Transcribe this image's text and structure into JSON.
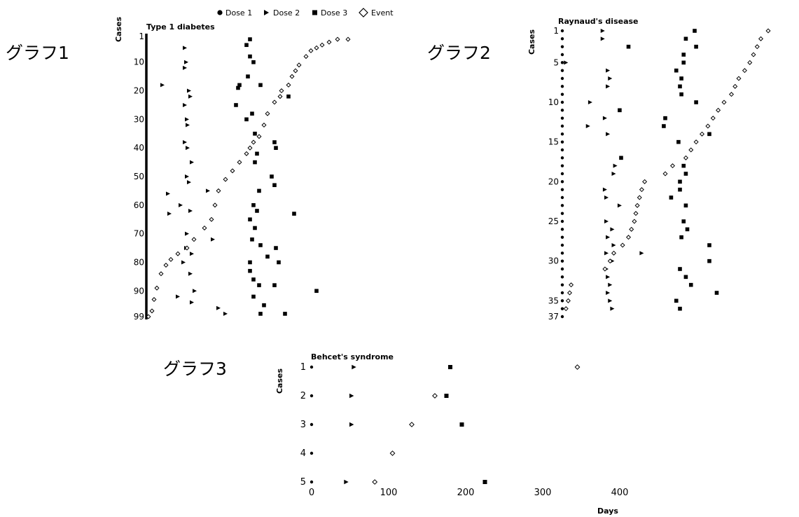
{
  "legend": {
    "dose1": "Dose 1",
    "dose2": "Dose 2",
    "dose3": "Dose 3",
    "event": "Event"
  },
  "chart_data": [
    {
      "type": "scatter",
      "panel_label": "グラフ1",
      "title": "Type 1 diabetes",
      "ylabel": "Cases",
      "xlabel": "",
      "ylim": [
        1,
        99
      ],
      "xlim": [
        0,
        300
      ],
      "y_ticks": [
        1,
        10,
        20,
        30,
        40,
        50,
        60,
        70,
        80,
        90,
        99
      ],
      "n_cases": 99,
      "dose1_day": 0,
      "series": [
        {
          "name": "Dose 2",
          "points": [
            [
              20,
              18
            ],
            [
              28,
              56
            ],
            [
              30,
              63
            ],
            [
              42,
              92
            ],
            [
              46,
              60
            ],
            [
              52,
              5
            ],
            [
              55,
              30
            ],
            [
              52,
              38
            ],
            [
              56,
              40
            ],
            [
              55,
              50
            ],
            [
              58,
              52
            ],
            [
              60,
              22
            ],
            [
              62,
              45
            ],
            [
              60,
              84
            ],
            [
              66,
              90
            ],
            [
              62,
              94
            ],
            [
              85,
              55
            ],
            [
              92,
              72
            ],
            [
              100,
              96
            ],
            [
              110,
              98
            ],
            [
              52,
              12
            ],
            [
              60,
              62
            ],
            [
              62,
              77
            ],
            [
              55,
              70
            ],
            [
              50,
              80
            ],
            [
              54,
              10
            ],
            [
              58,
              20
            ],
            [
              52,
              25
            ],
            [
              56,
              32
            ],
            [
              54,
              75
            ]
          ]
        },
        {
          "name": "Dose 3",
          "points": [
            [
              125,
              25
            ],
            [
              128,
              19
            ],
            [
              130,
              18
            ],
            [
              145,
              2
            ],
            [
              140,
              4
            ],
            [
              145,
              8
            ],
            [
              142,
              15
            ],
            [
              160,
              18
            ],
            [
              150,
              60
            ],
            [
              152,
              68
            ],
            [
              148,
              72
            ],
            [
              145,
              80
            ],
            [
              150,
              86
            ],
            [
              158,
              88
            ],
            [
              180,
              88
            ],
            [
              182,
              75
            ],
            [
              186,
              80
            ],
            [
              180,
              38
            ],
            [
              182,
              40
            ],
            [
              176,
              50
            ],
            [
              180,
              53
            ],
            [
              200,
              22
            ],
            [
              208,
              63
            ],
            [
              240,
              90
            ],
            [
              152,
              35
            ],
            [
              152,
              45
            ],
            [
              158,
              55
            ],
            [
              145,
              65
            ],
            [
              160,
              74
            ],
            [
              195,
              98
            ],
            [
              160,
              98
            ],
            [
              140,
              30
            ],
            [
              150,
              10
            ],
            [
              148,
              28
            ],
            [
              155,
              42
            ],
            [
              155,
              62
            ],
            [
              170,
              78
            ],
            [
              165,
              95
            ],
            [
              145,
              83
            ],
            [
              150,
              92
            ]
          ]
        },
        {
          "name": "Event",
          "points": [
            [
              0,
              99
            ],
            [
              5,
              97
            ],
            [
              8,
              93
            ],
            [
              12,
              89
            ],
            [
              18,
              84
            ],
            [
              25,
              81
            ],
            [
              32,
              79
            ],
            [
              42,
              77
            ],
            [
              55,
              75
            ],
            [
              65,
              72
            ],
            [
              80,
              68
            ],
            [
              90,
              65
            ],
            [
              95,
              60
            ],
            [
              100,
              55
            ],
            [
              110,
              51
            ],
            [
              120,
              48
            ],
            [
              130,
              45
            ],
            [
              140,
              42
            ],
            [
              145,
              40
            ],
            [
              150,
              38
            ],
            [
              158,
              36
            ],
            [
              165,
              32
            ],
            [
              170,
              28
            ],
            [
              180,
              24
            ],
            [
              188,
              22
            ],
            [
              190,
              20
            ],
            [
              200,
              18
            ],
            [
              205,
              15
            ],
            [
              210,
              13
            ],
            [
              215,
              11
            ],
            [
              225,
              8
            ],
            [
              232,
              6
            ],
            [
              240,
              5
            ],
            [
              248,
              4
            ],
            [
              258,
              3
            ],
            [
              270,
              2
            ],
            [
              285,
              2
            ]
          ]
        }
      ]
    },
    {
      "type": "scatter",
      "panel_label": "グラフ2",
      "title": "Raynaud's disease",
      "ylabel": "Cases",
      "xlabel": "",
      "ylim": [
        1,
        37
      ],
      "xlim": [
        0,
        300
      ],
      "y_ticks": [
        1,
        5,
        10,
        15,
        20,
        25,
        30,
        35,
        37
      ],
      "n_cases": 37,
      "dose1_day": 0,
      "series": [
        {
          "name": "Dose 2",
          "points": [
            [
              5,
              5
            ],
            [
              55,
              1
            ],
            [
              55,
              2
            ],
            [
              62,
              6
            ],
            [
              65,
              7
            ],
            [
              62,
              8
            ],
            [
              38,
              10
            ],
            [
              58,
              12
            ],
            [
              35,
              13
            ],
            [
              62,
              14
            ],
            [
              58,
              21
            ],
            [
              60,
              22
            ],
            [
              72,
              18
            ],
            [
              70,
              19
            ],
            [
              78,
              23
            ],
            [
              60,
              25
            ],
            [
              68,
              26
            ],
            [
              62,
              27
            ],
            [
              70,
              28
            ],
            [
              60,
              29
            ],
            [
              68,
              30
            ],
            [
              60,
              31
            ],
            [
              62,
              32
            ],
            [
              65,
              33
            ],
            [
              62,
              34
            ],
            [
              65,
              35
            ],
            [
              68,
              36
            ],
            [
              108,
              29
            ]
          ]
        },
        {
          "name": "Dose 3",
          "points": [
            [
              180,
              1
            ],
            [
              168,
              2
            ],
            [
              182,
              3
            ],
            [
              165,
              4
            ],
            [
              165,
              5
            ],
            [
              155,
              6
            ],
            [
              162,
              7
            ],
            [
              160,
              8
            ],
            [
              162,
              9
            ],
            [
              182,
              10
            ],
            [
              140,
              12
            ],
            [
              138,
              13
            ],
            [
              200,
              14
            ],
            [
              158,
              15
            ],
            [
              165,
              18
            ],
            [
              168,
              19
            ],
            [
              160,
              21
            ],
            [
              148,
              22
            ],
            [
              168,
              23
            ],
            [
              165,
              25
            ],
            [
              170,
              26
            ],
            [
              162,
              27
            ],
            [
              200,
              28
            ],
            [
              200,
              30
            ],
            [
              160,
              31
            ],
            [
              168,
              32
            ],
            [
              175,
              33
            ],
            [
              210,
              34
            ],
            [
              155,
              35
            ],
            [
              160,
              36
            ],
            [
              80,
              17
            ],
            [
              78,
              11
            ],
            [
              90,
              3
            ],
            [
              160,
              20
            ]
          ]
        },
        {
          "name": "Event",
          "points": [
            [
              280,
              1
            ],
            [
              270,
              2
            ],
            [
              265,
              3
            ],
            [
              260,
              4
            ],
            [
              255,
              5
            ],
            [
              248,
              6
            ],
            [
              240,
              7
            ],
            [
              235,
              8
            ],
            [
              230,
              9
            ],
            [
              220,
              10
            ],
            [
              212,
              11
            ],
            [
              205,
              12
            ],
            [
              198,
              13
            ],
            [
              190,
              14
            ],
            [
              182,
              15
            ],
            [
              175,
              16
            ],
            [
              168,
              17
            ],
            [
              150,
              18
            ],
            [
              140,
              19
            ],
            [
              112,
              20
            ],
            [
              108,
              21
            ],
            [
              105,
              22
            ],
            [
              102,
              23
            ],
            [
              100,
              24
            ],
            [
              98,
              25
            ],
            [
              94,
              26
            ],
            [
              90,
              27
            ],
            [
              82,
              28
            ],
            [
              70,
              29
            ],
            [
              65,
              30
            ],
            [
              58,
              31
            ],
            [
              10,
              34
            ],
            [
              8,
              35
            ],
            [
              5,
              36
            ],
            [
              12,
              33
            ]
          ]
        }
      ]
    },
    {
      "type": "scatter",
      "panel_label": "グラフ3",
      "title": "Behcet's syndrome",
      "ylabel": "Cases",
      "xlabel": "Days",
      "ylim": [
        1,
        5
      ],
      "xlim": [
        0,
        400
      ],
      "x_ticks": [
        0,
        100,
        200,
        300,
        400
      ],
      "y_ticks": [
        1,
        2,
        3,
        4,
        5
      ],
      "n_cases": 5,
      "dose1_day": 0,
      "series": [
        {
          "name": "Dose 2",
          "points": [
            [
              55,
              1
            ],
            [
              52,
              2
            ],
            [
              52,
              3
            ],
            [
              45,
              5
            ]
          ]
        },
        {
          "name": "Dose 3",
          "points": [
            [
              180,
              1
            ],
            [
              175,
              2
            ],
            [
              195,
              3
            ],
            [
              225,
              5
            ]
          ]
        },
        {
          "name": "Event",
          "points": [
            [
              345,
              1
            ],
            [
              160,
              2
            ],
            [
              130,
              3
            ],
            [
              105,
              4
            ],
            [
              82,
              5
            ]
          ]
        }
      ]
    }
  ]
}
